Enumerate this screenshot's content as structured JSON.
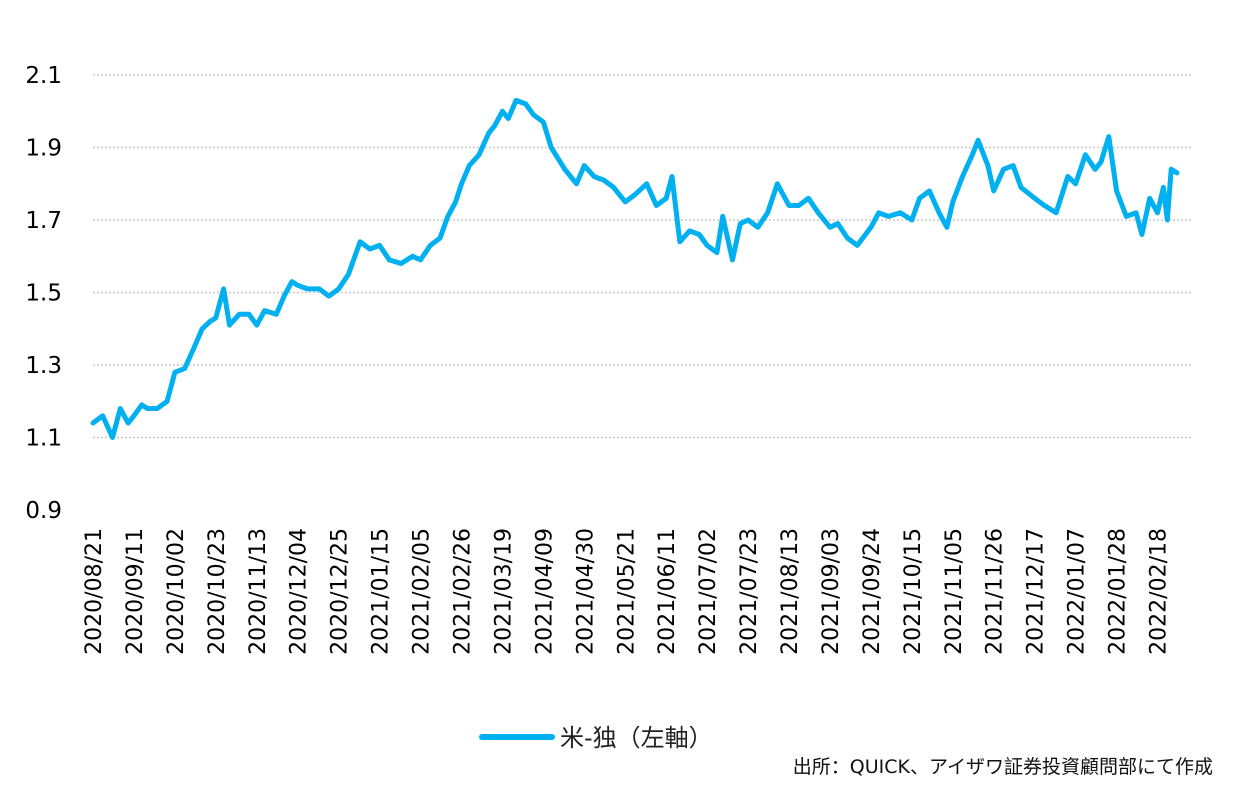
{
  "chart_data": {
    "type": "line",
    "title": "",
    "xlabel": "",
    "ylabel": "",
    "ylim": [
      0.9,
      2.1
    ],
    "yticks": [
      "2.1",
      "1.9",
      "1.7",
      "1.5",
      "1.3",
      "1.1",
      "0.9"
    ],
    "grid": true,
    "legend_position": "bottom",
    "x_tick_labels": [
      "2020/08/21",
      "2020/09/11",
      "2020/10/02",
      "2020/10/23",
      "2020/11/13",
      "2020/12/04",
      "2020/12/25",
      "2021/01/15",
      "2021/02/05",
      "2021/02/26",
      "2021/03/19",
      "2021/04/09",
      "2021/04/30",
      "2021/05/21",
      "2021/06/11",
      "2021/07/02",
      "2021/07/23",
      "2021/08/13",
      "2021/09/03",
      "2021/09/24",
      "2021/10/15",
      "2021/11/05",
      "2021/11/26",
      "2021/12/17",
      "2022/01/07",
      "2022/01/28",
      "2022/02/18"
    ],
    "series": [
      {
        "name": "米-独（左軸）",
        "color": "#00B0F0",
        "points": [
          [
            "2020/08/21",
            1.14
          ],
          [
            "2020/08/26",
            1.16
          ],
          [
            "2020/08/31",
            1.1
          ],
          [
            "2020/09/04",
            1.18
          ],
          [
            "2020/09/08",
            1.14
          ],
          [
            "2020/09/11",
            1.16
          ],
          [
            "2020/09/15",
            1.19
          ],
          [
            "2020/09/18",
            1.18
          ],
          [
            "2020/09/23",
            1.18
          ],
          [
            "2020/09/28",
            1.2
          ],
          [
            "2020/10/02",
            1.28
          ],
          [
            "2020/10/07",
            1.29
          ],
          [
            "2020/10/12",
            1.35
          ],
          [
            "2020/10/16",
            1.4
          ],
          [
            "2020/10/20",
            1.42
          ],
          [
            "2020/10/23",
            1.43
          ],
          [
            "2020/10/27",
            1.51
          ],
          [
            "2020/10/30",
            1.41
          ],
          [
            "2020/11/04",
            1.44
          ],
          [
            "2020/11/09",
            1.44
          ],
          [
            "2020/11/13",
            1.41
          ],
          [
            "2020/11/17",
            1.45
          ],
          [
            "2020/11/23",
            1.44
          ],
          [
            "2020/11/27",
            1.49
          ],
          [
            "2020/12/01",
            1.53
          ],
          [
            "2020/12/04",
            1.52
          ],
          [
            "2020/12/09",
            1.51
          ],
          [
            "2020/12/15",
            1.51
          ],
          [
            "2020/12/20",
            1.49
          ],
          [
            "2020/12/25",
            1.51
          ],
          [
            "2020/12/30",
            1.55
          ],
          [
            "2021/01/05",
            1.64
          ],
          [
            "2021/01/10",
            1.62
          ],
          [
            "2021/01/15",
            1.63
          ],
          [
            "2021/01/20",
            1.59
          ],
          [
            "2021/01/26",
            1.58
          ],
          [
            "2021/02/01",
            1.6
          ],
          [
            "2021/02/05",
            1.59
          ],
          [
            "2021/02/10",
            1.63
          ],
          [
            "2021/02/15",
            1.65
          ],
          [
            "2021/02/19",
            1.71
          ],
          [
            "2021/02/23",
            1.75
          ],
          [
            "2021/02/26",
            1.8
          ],
          [
            "2021/03/02",
            1.85
          ],
          [
            "2021/03/07",
            1.88
          ],
          [
            "2021/03/12",
            1.94
          ],
          [
            "2021/03/15",
            1.96
          ],
          [
            "2021/03/19",
            2.0
          ],
          [
            "2021/03/22",
            1.98
          ],
          [
            "2021/03/26",
            2.03
          ],
          [
            "2021/03/31",
            2.02
          ],
          [
            "2021/04/04",
            1.99
          ],
          [
            "2021/04/09",
            1.97
          ],
          [
            "2021/04/13",
            1.9
          ],
          [
            "2021/04/20",
            1.84
          ],
          [
            "2021/04/26",
            1.8
          ],
          [
            "2021/04/30",
            1.85
          ],
          [
            "2021/05/05",
            1.82
          ],
          [
            "2021/05/10",
            1.81
          ],
          [
            "2021/05/15",
            1.79
          ],
          [
            "2021/05/21",
            1.75
          ],
          [
            "2021/05/26",
            1.77
          ],
          [
            "2021/06/01",
            1.8
          ],
          [
            "2021/06/06",
            1.74
          ],
          [
            "2021/06/11",
            1.76
          ],
          [
            "2021/06/14",
            1.82
          ],
          [
            "2021/06/18",
            1.64
          ],
          [
            "2021/06/23",
            1.67
          ],
          [
            "2021/06/28",
            1.66
          ],
          [
            "2021/07/02",
            1.63
          ],
          [
            "2021/07/07",
            1.61
          ],
          [
            "2021/07/10",
            1.71
          ],
          [
            "2021/07/15",
            1.59
          ],
          [
            "2021/07/19",
            1.69
          ],
          [
            "2021/07/23",
            1.7
          ],
          [
            "2021/07/28",
            1.68
          ],
          [
            "2021/08/02",
            1.72
          ],
          [
            "2021/08/07",
            1.8
          ],
          [
            "2021/08/13",
            1.74
          ],
          [
            "2021/08/18",
            1.74
          ],
          [
            "2021/08/23",
            1.76
          ],
          [
            "2021/08/28",
            1.72
          ],
          [
            "2021/09/03",
            1.68
          ],
          [
            "2021/09/07",
            1.69
          ],
          [
            "2021/09/12",
            1.65
          ],
          [
            "2021/09/17",
            1.63
          ],
          [
            "2021/09/24",
            1.68
          ],
          [
            "2021/09/28",
            1.72
          ],
          [
            "2021/10/03",
            1.71
          ],
          [
            "2021/10/09",
            1.72
          ],
          [
            "2021/10/15",
            1.7
          ],
          [
            "2021/10/19",
            1.76
          ],
          [
            "2021/10/24",
            1.78
          ],
          [
            "2021/10/29",
            1.72
          ],
          [
            "2021/11/02",
            1.68
          ],
          [
            "2021/11/05",
            1.75
          ],
          [
            "2021/11/10",
            1.82
          ],
          [
            "2021/11/15",
            1.88
          ],
          [
            "2021/11/18",
            1.92
          ],
          [
            "2021/11/23",
            1.85
          ],
          [
            "2021/11/26",
            1.78
          ],
          [
            "2021/12/01",
            1.84
          ],
          [
            "2021/12/06",
            1.85
          ],
          [
            "2021/12/10",
            1.79
          ],
          [
            "2021/12/17",
            1.76
          ],
          [
            "2021/12/22",
            1.74
          ],
          [
            "2021/12/28",
            1.72
          ],
          [
            "2022/01/03",
            1.82
          ],
          [
            "2022/01/07",
            1.8
          ],
          [
            "2022/01/12",
            1.88
          ],
          [
            "2022/01/17",
            1.84
          ],
          [
            "2022/01/20",
            1.86
          ],
          [
            "2022/01/24",
            1.93
          ],
          [
            "2022/01/28",
            1.78
          ],
          [
            "2022/02/02",
            1.71
          ],
          [
            "2022/02/07",
            1.72
          ],
          [
            "2022/02/10",
            1.66
          ],
          [
            "2022/02/14",
            1.76
          ],
          [
            "2022/02/18",
            1.72
          ],
          [
            "2022/02/21",
            1.79
          ],
          [
            "2022/02/23",
            1.7
          ],
          [
            "2022/02/25",
            1.84
          ],
          [
            "2022/02/28",
            1.83
          ]
        ]
      }
    ]
  },
  "source_text": "出所：QUICK、アイザワ証券投資顧問部にて作成"
}
